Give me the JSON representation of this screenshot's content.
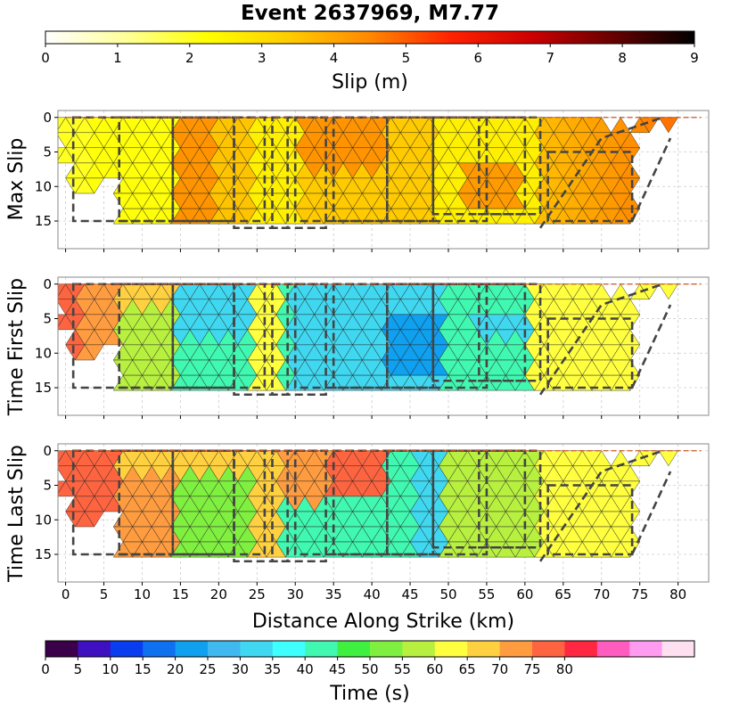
{
  "chart_data": {
    "type": "heatmap",
    "title": "Event 2637969, M7.77",
    "slip_colorbar": {
      "label": "Slip (m)",
      "ticks": [
        0,
        1,
        2,
        3,
        4,
        5,
        6,
        7,
        8,
        9
      ],
      "range": [
        0,
        9
      ],
      "stops": [
        "#ffffff",
        "#ffff99",
        "#ffff00",
        "#ffcc00",
        "#ff8800",
        "#ff2200",
        "#cc0000",
        "#660000",
        "#000000"
      ]
    },
    "time_colorbar": {
      "label": "Time (s)",
      "ticks": [
        0,
        5,
        10,
        15,
        20,
        25,
        30,
        35,
        40,
        45,
        50,
        55,
        60,
        65,
        70,
        75,
        80
      ],
      "bin_width": 5,
      "colors": [
        "#3a004a",
        "#3f10c0",
        "#0a3cf0",
        "#0f70f0",
        "#0fa0f0",
        "#40b8f0",
        "#40d8f0",
        "#40ffff",
        "#40f8b0",
        "#40f040",
        "#80f040",
        "#b8f040",
        "#ffff40",
        "#ffd040",
        "#ff9c40",
        "#ff6440",
        "#ff2840",
        "#ff5cc0",
        "#ff9cf0",
        "#ffe0f0"
      ]
    },
    "xlabel": "Distance Along Strike (km)",
    "xticks": [
      0,
      5,
      10,
      15,
      20,
      25,
      30,
      35,
      40,
      45,
      50,
      55,
      60,
      65,
      70,
      75,
      80
    ],
    "xlim": [
      -1,
      84
    ],
    "ylim": [
      19,
      -1
    ],
    "yticks": [
      0,
      5,
      10,
      15
    ],
    "grid": true,
    "panels": [
      {
        "ylabel": "Max Slip",
        "field": "slip"
      },
      {
        "ylabel": "Time First Slip",
        "field": "time_first"
      },
      {
        "ylabel": "Time Last Slip",
        "field": "time_last"
      }
    ],
    "fault_segments": [
      {
        "x0": 1,
        "x1": 14,
        "y0": 0,
        "y1": 15
      },
      {
        "x0": 7,
        "x1": 22,
        "y0": 0,
        "y1": 15
      },
      {
        "x0": 14,
        "x1": 26,
        "y0": 0,
        "y1": 15
      },
      {
        "x0": 22,
        "x1": 29,
        "y0": 0,
        "y1": 16
      },
      {
        "x0": 27,
        "x1": 34,
        "y0": 0,
        "y1": 16
      },
      {
        "x0": 30,
        "x1": 42,
        "y0": 0,
        "y1": 15
      },
      {
        "x0": 35,
        "x1": 48,
        "y0": 0,
        "y1": 15
      },
      {
        "x0": 42,
        "x1": 55,
        "y0": 0,
        "y1": 15
      },
      {
        "x0": 48,
        "x1": 60,
        "y0": 0,
        "y1": 14
      },
      {
        "x0": 54,
        "x1": 62,
        "y0": 0,
        "y1": 14
      },
      {
        "x0": 63,
        "x1": 74,
        "y0": 5,
        "y1": 15
      }
    ]
  }
}
